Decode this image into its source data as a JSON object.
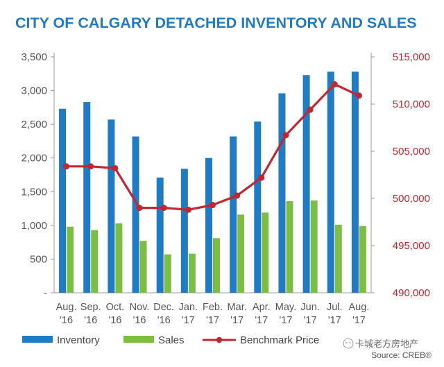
{
  "chart_data": {
    "type": "bar",
    "title": "CITY OF CALGARY DETACHED INVENTORY AND SALES",
    "categories": [
      [
        "Aug.",
        "'16"
      ],
      [
        "Sep.",
        "'16"
      ],
      [
        "Oct.",
        "'16"
      ],
      [
        "Nov.",
        "'16"
      ],
      [
        "Dec.",
        "'16"
      ],
      [
        "Jan.",
        "'17"
      ],
      [
        "Feb.",
        "'17"
      ],
      [
        "Mar.",
        "'17"
      ],
      [
        "Apr.",
        "'17"
      ],
      [
        "May.",
        "'17"
      ],
      [
        "Jun.",
        "'17"
      ],
      [
        "Jul.",
        "'17"
      ],
      [
        "Aug.",
        "'17"
      ]
    ],
    "left_axis": {
      "min": 0,
      "max": 3500,
      "ticks": [
        0,
        500,
        1000,
        1500,
        2000,
        2500,
        3000,
        3500
      ],
      "tick_labels": [
        "-",
        "500",
        "1,000",
        "1,500",
        "2,000",
        "2,500",
        "3,000",
        "3,500"
      ]
    },
    "right_axis": {
      "min": 490000,
      "max": 515000,
      "ticks": [
        490000,
        495000,
        500000,
        505000,
        510000,
        515000
      ],
      "tick_labels": [
        "490,000",
        "495,000",
        "500,000",
        "505,000",
        "510,000",
        "515,000"
      ]
    },
    "series": [
      {
        "name": "Inventory",
        "type": "bar",
        "axis": "left",
        "color": "#1f7bc4",
        "values": [
          2730,
          2830,
          2570,
          2320,
          1710,
          1840,
          2000,
          2320,
          2540,
          2960,
          3230,
          3280,
          3280
        ]
      },
      {
        "name": "Sales",
        "type": "bar",
        "axis": "left",
        "color": "#7cbe43",
        "values": [
          980,
          930,
          1030,
          770,
          570,
          580,
          810,
          1160,
          1190,
          1360,
          1370,
          1010,
          990
        ]
      },
      {
        "name": "Benchmark Price",
        "type": "line",
        "axis": "right",
        "color": "#c3262f",
        "values": [
          503400,
          503400,
          503200,
          499000,
          499000,
          498800,
          499300,
          500300,
          502200,
          506700,
          509400,
          512100,
          510900
        ]
      }
    ],
    "legend": [
      "Inventory",
      "Sales",
      "Benchmark Price"
    ],
    "legend_position": "bottom-left",
    "watermark": "卡城老方房地产",
    "source": "Source: CREB®"
  },
  "colors": {
    "title": "#1f7bc4",
    "right_axis": "#c3262f",
    "axis_text": "#555555",
    "axis_line": "#999999"
  }
}
